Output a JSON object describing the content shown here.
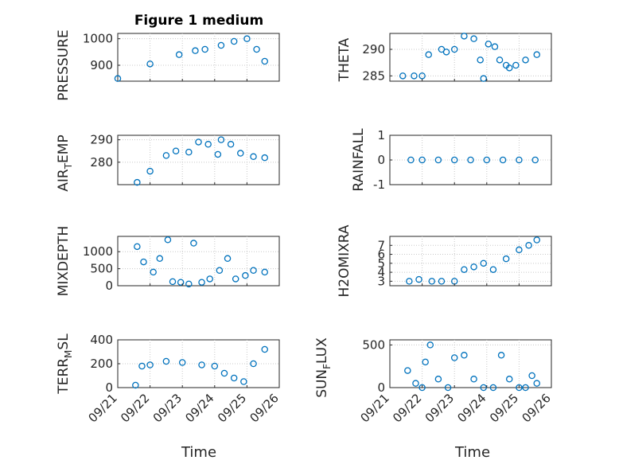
{
  "figure_title": "Figure 1 medium",
  "x_axis_label": "Time",
  "x_tick_labels": [
    "09/21",
    "09/22",
    "09/23",
    "09/24",
    "09/25",
    "09/26"
  ],
  "colors": {
    "marker": "#0072BD",
    "axis": "#262626",
    "grid": "#c8c8c8",
    "background": "#ffffff"
  },
  "chart_data": [
    {
      "type": "scatter",
      "title": "Figure 1 medium",
      "ylabel": "PRESSURE",
      "xlabel": "",
      "xlim": [
        0,
        5
      ],
      "ylim": [
        840,
        1020
      ],
      "yticks": [
        900,
        1000
      ],
      "grid": true,
      "marker": "open-circle",
      "x": [
        0,
        1,
        1.9,
        2.4,
        2.7,
        3.2,
        3.6,
        4.0,
        4.3,
        4.55
      ],
      "y": [
        850,
        905,
        940,
        955,
        960,
        975,
        990,
        1000,
        960,
        915
      ]
    },
    {
      "type": "scatter",
      "title": "",
      "ylabel": "THETA",
      "xlabel": "",
      "xlim": [
        0,
        5
      ],
      "ylim": [
        284,
        293
      ],
      "yticks": [
        285,
        290
      ],
      "grid": true,
      "marker": "open-circle",
      "x": [
        0.4,
        0.75,
        1.0,
        1.2,
        1.6,
        1.75,
        2.0,
        2.3,
        2.6,
        2.8,
        2.9,
        3.05,
        3.25,
        3.4,
        3.6,
        3.7,
        3.9,
        4.2,
        4.55
      ],
      "y": [
        285,
        285,
        285,
        289,
        290,
        289.5,
        290,
        292.5,
        292,
        288,
        284.5,
        291,
        290.5,
        288,
        287,
        286.5,
        287,
        288,
        289
      ]
    },
    {
      "type": "scatter",
      "title": "",
      "ylabel": "AIR_TEMP",
      "xlabel": "",
      "xlim": [
        0,
        5
      ],
      "ylim": [
        270,
        292
      ],
      "yticks": [
        280,
        290
      ],
      "grid": true,
      "marker": "open-circle",
      "x": [
        0.6,
        1.0,
        1.5,
        1.8,
        2.2,
        2.5,
        2.8,
        3.1,
        3.2,
        3.5,
        3.8,
        4.2,
        4.55
      ],
      "y": [
        271,
        276,
        283,
        285,
        284.5,
        289,
        288,
        283.5,
        290,
        288,
        284,
        282.5,
        282
      ]
    },
    {
      "type": "scatter",
      "title": "",
      "ylabel": "RAINFALL",
      "xlabel": "",
      "xlim": [
        0,
        5
      ],
      "ylim": [
        -1,
        1
      ],
      "yticks": [
        -1,
        0,
        1
      ],
      "grid": true,
      "marker": "open-circle",
      "x": [
        0.65,
        1.0,
        1.5,
        2.0,
        2.5,
        3.0,
        3.5,
        4.0,
        4.5
      ],
      "y": [
        0,
        0,
        0,
        0,
        0,
        0,
        0,
        0,
        0
      ]
    },
    {
      "type": "scatter",
      "title": "",
      "ylabel": "MIXDEPTH",
      "xlabel": "",
      "xlim": [
        0,
        5
      ],
      "ylim": [
        0,
        1450
      ],
      "yticks": [
        0,
        500,
        1000
      ],
      "grid": true,
      "marker": "open-circle",
      "x": [
        0.6,
        0.8,
        1.1,
        1.3,
        1.55,
        1.7,
        1.95,
        2.2,
        2.35,
        2.6,
        2.85,
        3.15,
        3.4,
        3.65,
        3.95,
        4.2,
        4.55
      ],
      "y": [
        1150,
        700,
        400,
        800,
        1350,
        120,
        100,
        50,
        1250,
        100,
        200,
        450,
        800,
        200,
        300,
        450,
        400
      ]
    },
    {
      "type": "scatter",
      "title": "",
      "ylabel": "H2OMIXRA",
      "xlabel": "",
      "xlim": [
        0,
        5
      ],
      "ylim": [
        2.5,
        8
      ],
      "yticks": [
        3,
        4,
        5,
        6,
        7
      ],
      "grid": true,
      "marker": "open-circle",
      "x": [
        0.6,
        0.9,
        1.3,
        1.6,
        2.0,
        2.3,
        2.6,
        2.9,
        3.2,
        3.6,
        4.0,
        4.3,
        4.55
      ],
      "y": [
        3,
        3.2,
        3,
        3,
        3,
        4.3,
        4.6,
        5,
        4.3,
        5.5,
        6.5,
        7,
        7.6
      ]
    },
    {
      "type": "scatter",
      "title": "",
      "ylabel": "TERR_MSL",
      "xlabel": "",
      "xlim": [
        0,
        5
      ],
      "ylim": [
        0,
        400
      ],
      "yticks": [
        0,
        200,
        400
      ],
      "grid": true,
      "marker": "open-circle",
      "x": [
        0.55,
        0.75,
        1.0,
        1.5,
        2.0,
        2.6,
        3.0,
        3.3,
        3.6,
        3.9,
        4.2,
        4.55
      ],
      "y": [
        20,
        180,
        190,
        220,
        210,
        190,
        180,
        120,
        80,
        50,
        200,
        320
      ]
    },
    {
      "type": "scatter",
      "title": "",
      "ylabel": "SUN_FLUX",
      "xlabel": "Time",
      "xlim": [
        0,
        5
      ],
      "ylim": [
        0,
        560
      ],
      "yticks": [
        0,
        500
      ],
      "grid": true,
      "marker": "open-circle",
      "x": [
        0.55,
        0.8,
        1.0,
        1.1,
        1.25,
        1.5,
        1.8,
        2.0,
        2.3,
        2.6,
        2.9,
        3.2,
        3.45,
        3.7,
        4.0,
        4.2,
        4.4,
        4.55
      ],
      "y": [
        200,
        50,
        0,
        300,
        500,
        100,
        0,
        350,
        380,
        100,
        0,
        0,
        380,
        100,
        0,
        0,
        140,
        50
      ]
    }
  ]
}
